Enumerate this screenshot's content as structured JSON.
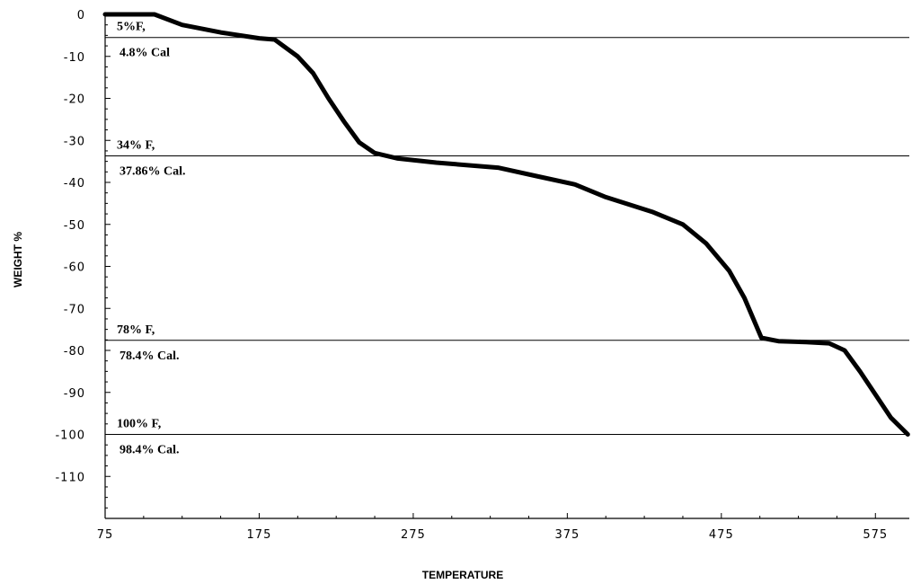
{
  "chart_data": {
    "type": "line",
    "title": "",
    "xlabel": "TEMPERATURE",
    "ylabel": "WEIGHT %",
    "xlim": [
      75,
      597
    ],
    "ylim": [
      -120,
      0
    ],
    "x_ticks": [
      75,
      175,
      275,
      375,
      475,
      575
    ],
    "y_ticks": [
      0,
      -10,
      -20,
      -30,
      -40,
      -50,
      -60,
      -70,
      -80,
      -90,
      -100,
      -110
    ],
    "grid": false,
    "legend": "none",
    "line_color": "#000000",
    "series": [
      {
        "name": "",
        "x": [
          75,
          107,
          125,
          150,
          175,
          185,
          200,
          210,
          220,
          230,
          240,
          250,
          265,
          290,
          330,
          355,
          380,
          400,
          430,
          450,
          465,
          480,
          490,
          501,
          512,
          530,
          545,
          555,
          565,
          575,
          585,
          596
        ],
        "y": [
          0,
          0,
          -2.5,
          -4.3,
          -5.7,
          -6,
          -10,
          -14,
          -20,
          -25.5,
          -30.5,
          -33,
          -34.3,
          -35.3,
          -36.5,
          -38.5,
          -40.5,
          -43.5,
          -47,
          -50,
          -54.5,
          -61,
          -67.5,
          -77,
          -77.8,
          -78,
          -78.3,
          -80,
          -85,
          -90.5,
          -96,
          -100
        ]
      }
    ],
    "reference_lines": [
      {
        "y": -5.5,
        "label_above": "5%F,",
        "label_below": "4.8% Cal"
      },
      {
        "y": -33.7,
        "label_above": "34% F,",
        "label_below": "37.86% Cal."
      },
      {
        "y": -77.6,
        "label_above": "78% F,",
        "label_below": "78.4% Cal."
      },
      {
        "y": -100,
        "label_above": "100% F,",
        "label_below": "98.4% Cal."
      }
    ]
  }
}
